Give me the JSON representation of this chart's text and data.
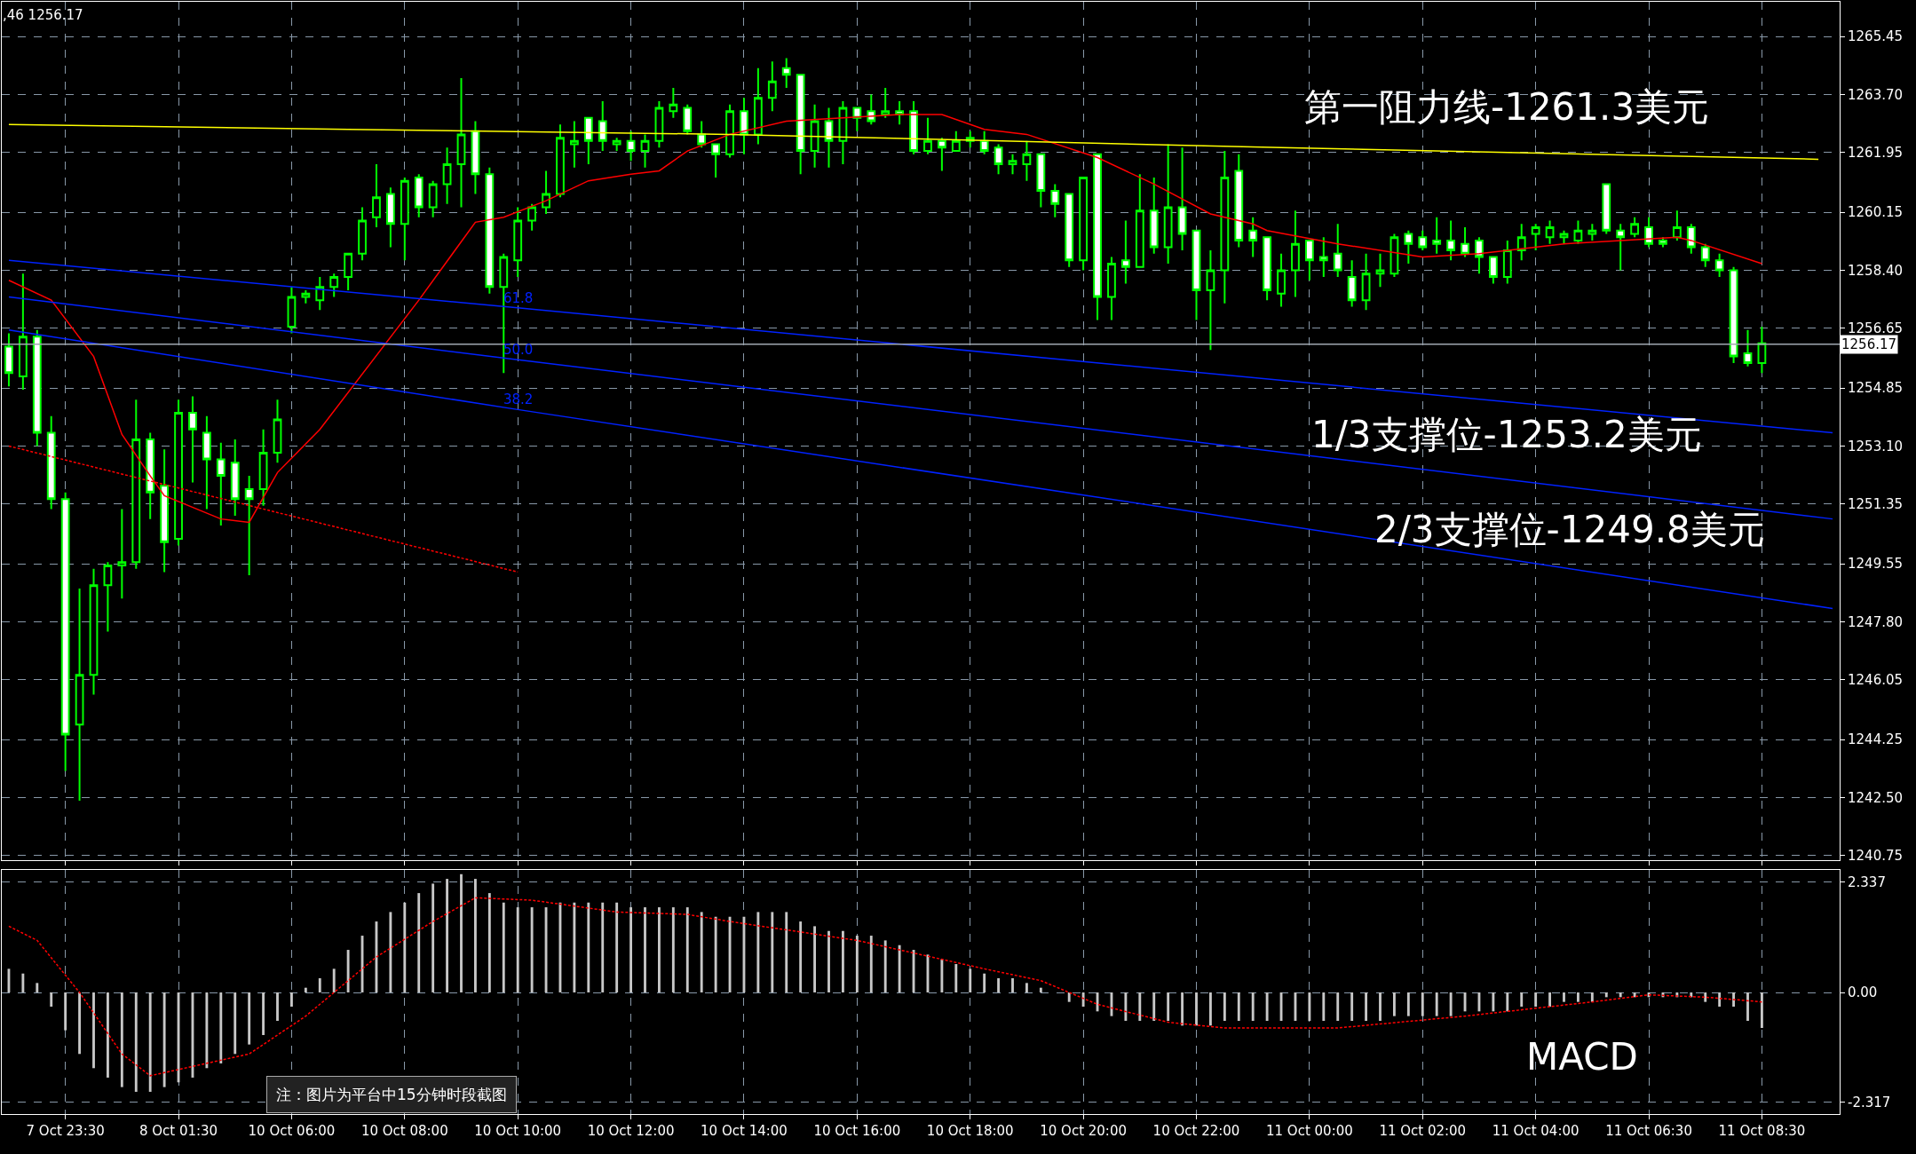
{
  "chart_data": [
    {
      "type": "candlestick",
      "tick_labels": "y",
      "grid": true,
      "categories": [
        null,
        null,
        null,
        null,
        null,
        null,
        null,
        null,
        null,
        null,
        null,
        null,
        null,
        null,
        null,
        null,
        null,
        null,
        null,
        null,
        null,
        null,
        null,
        null,
        null,
        null,
        null,
        null,
        null,
        null,
        null,
        null,
        null,
        null,
        null,
        null,
        null,
        null,
        null,
        null,
        null,
        null,
        null,
        null,
        null,
        null,
        null,
        null,
        null,
        null,
        null,
        null,
        null,
        null,
        null,
        null,
        null,
        null,
        null,
        null,
        null,
        null,
        null,
        null,
        null,
        null,
        null,
        null,
        null,
        null,
        null,
        null,
        null,
        null,
        null,
        null,
        null,
        null,
        null,
        null,
        null,
        null,
        null,
        null,
        null,
        null,
        null,
        null,
        null,
        null,
        null,
        null,
        null,
        null,
        null,
        null,
        null,
        null,
        null,
        null,
        null,
        null,
        null,
        null,
        null,
        null,
        null,
        null,
        null,
        null,
        null,
        null,
        null,
        null,
        null,
        null,
        null,
        null,
        null,
        null,
        null,
        null,
        null,
        null,
        null,
        null,
        null,
        null,
        null,
        null
      ],
      "ohlc": [
        [
          1256.1,
          1256.5,
          1254.9,
          1255.3
        ],
        [
          1255.2,
          1258.3,
          1254.8,
          1256.4
        ],
        [
          1256.4,
          1256.6,
          1253.1,
          1253.5
        ],
        [
          1253.5,
          1254.0,
          1251.2,
          1251.5
        ],
        [
          1251.5,
          1251.7,
          1243.3,
          1244.4
        ],
        [
          1244.7,
          1248.8,
          1242.4,
          1246.2
        ],
        [
          1246.2,
          1249.4,
          1245.6,
          1248.9
        ],
        [
          1248.9,
          1249.6,
          1247.5,
          1249.5
        ],
        [
          1249.5,
          1251.2,
          1248.5,
          1249.6
        ],
        [
          1249.6,
          1254.5,
          1249.4,
          1253.3
        ],
        [
          1253.3,
          1253.5,
          1250.9,
          1251.7
        ],
        [
          1251.9,
          1253.0,
          1249.3,
          1250.2
        ],
        [
          1250.3,
          1254.5,
          1250.1,
          1254.1
        ],
        [
          1254.1,
          1254.6,
          1252.0,
          1253.6
        ],
        [
          1253.5,
          1254.0,
          1251.2,
          1252.7
        ],
        [
          1252.7,
          1253.2,
          1250.7,
          1252.2
        ],
        [
          1252.6,
          1253.3,
          1251.0,
          1251.5
        ],
        [
          1251.8,
          1252.2,
          1249.2,
          1251.5
        ],
        [
          1251.8,
          1253.6,
          1251.3,
          1252.9
        ],
        [
          1252.9,
          1254.5,
          1252.6,
          1253.9
        ],
        [
          1256.7,
          1257.9,
          1256.5,
          1257.6
        ],
        [
          1257.6,
          1257.8,
          1257.4,
          1257.7
        ],
        [
          1257.5,
          1258.2,
          1257.2,
          1257.9
        ],
        [
          1257.9,
          1258.3,
          1257.6,
          1258.2
        ],
        [
          1258.2,
          1258.9,
          1257.8,
          1258.9
        ],
        [
          1258.9,
          1260.3,
          1258.7,
          1259.9
        ],
        [
          1260.0,
          1261.6,
          1259.7,
          1260.6
        ],
        [
          1260.7,
          1260.9,
          1259.1,
          1259.8
        ],
        [
          1259.8,
          1261.2,
          1258.7,
          1261.1
        ],
        [
          1261.2,
          1261.3,
          1260.0,
          1260.3
        ],
        [
          1260.3,
          1261.1,
          1260.0,
          1261.0
        ],
        [
          1261.0,
          1262.1,
          1260.4,
          1261.6
        ],
        [
          1261.6,
          1264.2,
          1260.3,
          1262.5
        ],
        [
          1262.6,
          1262.9,
          1260.7,
          1261.3
        ],
        [
          1261.3,
          1261.5,
          1257.7,
          1257.9
        ],
        [
          1257.9,
          1258.9,
          1255.3,
          1258.8
        ],
        [
          1258.7,
          1260.3,
          1258.2,
          1259.9
        ],
        [
          1259.9,
          1260.4,
          1259.6,
          1260.3
        ],
        [
          1260.3,
          1261.4,
          1260.1,
          1260.7
        ],
        [
          1260.7,
          1262.8,
          1260.6,
          1262.4
        ],
        [
          1262.2,
          1262.9,
          1261.5,
          1262.3
        ],
        [
          1263.0,
          1263.0,
          1261.6,
          1262.3
        ],
        [
          1262.9,
          1263.5,
          1262.0,
          1262.3
        ],
        [
          1262.2,
          1262.4,
          1262.0,
          1262.3
        ],
        [
          1262.3,
          1262.6,
          1261.7,
          1262.0
        ],
        [
          1262.0,
          1262.5,
          1261.5,
          1262.3
        ],
        [
          1262.3,
          1263.5,
          1262.1,
          1263.3
        ],
        [
          1263.2,
          1263.9,
          1263.0,
          1263.4
        ],
        [
          1263.3,
          1263.4,
          1262.5,
          1262.6
        ],
        [
          1262.5,
          1262.9,
          1262.1,
          1262.2
        ],
        [
          1262.2,
          1262.2,
          1261.2,
          1261.9
        ],
        [
          1261.9,
          1263.4,
          1261.8,
          1263.2
        ],
        [
          1263.2,
          1263.6,
          1261.9,
          1262.5
        ],
        [
          1262.5,
          1264.5,
          1262.2,
          1263.6
        ],
        [
          1263.6,
          1264.7,
          1263.2,
          1264.1
        ],
        [
          1264.5,
          1264.8,
          1263.9,
          1264.3
        ],
        [
          1264.3,
          1264.3,
          1261.3,
          1262.0
        ],
        [
          1262.0,
          1263.4,
          1261.5,
          1262.9
        ],
        [
          1262.9,
          1263.3,
          1261.5,
          1262.3
        ],
        [
          1262.3,
          1263.5,
          1261.6,
          1263.3
        ],
        [
          1263.3,
          1263.3,
          1262.6,
          1263.0
        ],
        [
          1263.2,
          1263.7,
          1262.8,
          1262.9
        ],
        [
          1263.1,
          1263.9,
          1263.0,
          1263.2
        ],
        [
          1263.2,
          1263.5,
          1262.8,
          1263.1
        ],
        [
          1263.2,
          1263.5,
          1261.9,
          1262.0
        ],
        [
          1262.0,
          1263.0,
          1261.9,
          1262.3
        ],
        [
          1262.3,
          1262.4,
          1261.4,
          1262.1
        ],
        [
          1262.0,
          1262.6,
          1262.0,
          1262.3
        ],
        [
          1262.3,
          1262.6,
          1262.1,
          1262.4
        ],
        [
          1262.3,
          1262.6,
          1261.9,
          1262.0
        ],
        [
          1262.1,
          1262.2,
          1261.3,
          1261.6
        ],
        [
          1261.6,
          1261.9,
          1261.3,
          1261.7
        ],
        [
          1261.6,
          1262.3,
          1261.1,
          1261.9
        ],
        [
          1261.9,
          1261.9,
          1260.3,
          1260.8
        ],
        [
          1260.8,
          1261.0,
          1260.0,
          1260.4
        ],
        [
          1260.7,
          1260.7,
          1258.5,
          1258.7
        ],
        [
          1258.7,
          1261.2,
          1258.4,
          1261.2
        ],
        [
          1261.9,
          1261.9,
          1256.9,
          1257.6
        ],
        [
          1257.6,
          1258.8,
          1256.9,
          1258.6
        ],
        [
          1258.7,
          1259.9,
          1258.0,
          1258.5
        ],
        [
          1258.5,
          1261.3,
          1258.5,
          1260.2
        ],
        [
          1260.2,
          1261.2,
          1258.9,
          1259.1
        ],
        [
          1259.1,
          1262.2,
          1258.6,
          1260.3
        ],
        [
          1260.3,
          1262.1,
          1259.0,
          1259.5
        ],
        [
          1259.6,
          1259.6,
          1256.9,
          1257.8
        ],
        [
          1257.8,
          1259.0,
          1256.0,
          1258.4
        ],
        [
          1258.4,
          1262.0,
          1257.4,
          1261.2
        ],
        [
          1261.4,
          1261.9,
          1259.1,
          1259.3
        ],
        [
          1259.6,
          1260.0,
          1258.8,
          1259.3
        ],
        [
          1259.4,
          1259.4,
          1257.5,
          1257.8
        ],
        [
          1257.7,
          1258.9,
          1257.3,
          1258.4
        ],
        [
          1258.4,
          1260.2,
          1257.6,
          1259.2
        ],
        [
          1259.3,
          1259.3,
          1258.1,
          1258.7
        ],
        [
          1258.8,
          1259.4,
          1258.2,
          1258.7
        ],
        [
          1258.9,
          1259.8,
          1258.2,
          1258.4
        ],
        [
          1258.2,
          1258.7,
          1257.3,
          1257.5
        ],
        [
          1257.5,
          1258.9,
          1257.2,
          1258.3
        ],
        [
          1258.3,
          1258.9,
          1257.9,
          1258.4
        ],
        [
          1258.3,
          1259.5,
          1258.2,
          1259.4
        ],
        [
          1259.5,
          1259.6,
          1258.6,
          1259.2
        ],
        [
          1259.4,
          1259.6,
          1259.0,
          1259.1
        ],
        [
          1259.3,
          1260.0,
          1258.9,
          1259.2
        ],
        [
          1259.3,
          1259.9,
          1258.7,
          1259.0
        ],
        [
          1259.2,
          1259.7,
          1258.8,
          1258.9
        ],
        [
          1259.3,
          1259.4,
          1258.3,
          1258.8
        ],
        [
          1258.8,
          1258.8,
          1258.0,
          1258.2
        ],
        [
          1258.2,
          1259.3,
          1258.0,
          1259.0
        ],
        [
          1259.0,
          1259.8,
          1258.7,
          1259.4
        ],
        [
          1259.5,
          1259.8,
          1259.0,
          1259.7
        ],
        [
          1259.4,
          1259.9,
          1259.2,
          1259.7
        ],
        [
          1259.4,
          1259.6,
          1259.2,
          1259.5
        ],
        [
          1259.3,
          1259.9,
          1259.2,
          1259.6
        ],
        [
          1259.5,
          1259.8,
          1259.3,
          1259.6
        ],
        [
          1261.0,
          1261.0,
          1259.5,
          1259.6
        ],
        [
          1259.6,
          1259.8,
          1258.4,
          1259.4
        ],
        [
          1259.5,
          1260.0,
          1259.4,
          1259.8
        ],
        [
          1259.7,
          1260.0,
          1259.1,
          1259.2
        ],
        [
          1259.3,
          1259.4,
          1259.1,
          1259.2
        ],
        [
          1259.4,
          1260.2,
          1259.3,
          1259.7
        ],
        [
          1259.7,
          1259.8,
          1258.9,
          1259.1
        ],
        [
          1259.1,
          1259.2,
          1258.5,
          1258.7
        ],
        [
          1258.7,
          1258.9,
          1258.2,
          1258.4
        ],
        [
          1258.4,
          1258.5,
          1255.6,
          1255.8
        ],
        [
          1255.9,
          1256.6,
          1255.5,
          1255.6
        ],
        [
          1255.6,
          1256.7,
          1255.3,
          1256.2
        ],
        null,
        null,
        null,
        null,
        null
      ],
      "color": "#00ff00",
      "series": [
        {
          "type": "line",
          "color": "#ff0000",
          "values": [
            1258.1,
            null,
            null,
            1257.5,
            null,
            null,
            1255.8,
            null,
            1253.45,
            null,
            1252.2,
            1251.6,
            null,
            null,
            null,
            1250.9,
            null,
            1250.8,
            null,
            1252.3,
            null,
            null,
            1253.6,
            null,
            null,
            null,
            null,
            null,
            null,
            1257.5,
            null,
            null,
            null,
            1259.85,
            null,
            1260.0,
            null,
            null,
            1260.5,
            null,
            null,
            1261.1,
            null,
            null,
            1261.3,
            null,
            1261.4,
            null,
            1262.0,
            null,
            null,
            1262.5,
            null,
            null,
            null,
            1262.9,
            null,
            null,
            null,
            1263.0,
            null,
            null,
            null,
            1263.1,
            null,
            null,
            1263.1,
            null,
            null,
            1262.65,
            null,
            null,
            1262.5,
            null,
            null,
            null,
            null,
            1261.8,
            null,
            null,
            null,
            1261.0,
            null,
            null,
            null,
            1260.1,
            null,
            null,
            1259.8,
            1259.6,
            null,
            null,
            null,
            null,
            1259.2,
            null,
            null,
            null,
            null,
            null,
            1258.8,
            null,
            null,
            null,
            1258.9,
            null,
            null,
            null,
            null,
            null,
            1259.2,
            null,
            null,
            null,
            1259.3,
            null,
            null,
            null,
            1259.4,
            1259.3,
            null,
            null,
            null,
            null,
            1258.6,
            null,
            null,
            null,
            null,
            null
          ]
        },
        {
          "type": "line",
          "color": "#ffff00",
          "values": [
            1262.8,
            null,
            null,
            null,
            null,
            null,
            null,
            null,
            null,
            null,
            null,
            null,
            null,
            null,
            null,
            null,
            null,
            null,
            null,
            null,
            null,
            null,
            null,
            null,
            1262.65,
            null,
            null,
            null,
            null,
            null,
            null,
            null,
            null,
            null,
            null,
            null,
            null,
            null,
            null,
            null,
            null,
            null,
            null,
            null,
            null,
            null,
            null,
            null,
            null,
            null,
            null,
            1262.5,
            null,
            null,
            null,
            null,
            null,
            null,
            null,
            null,
            null,
            null,
            null,
            null,
            null,
            null,
            null,
            null,
            null,
            null,
            null,
            null,
            null,
            null,
            null,
            null,
            null,
            null,
            null,
            null,
            null,
            null,
            null,
            null,
            null,
            null,
            null,
            null,
            null,
            null,
            1262.1,
            null,
            null,
            null,
            null,
            null,
            null,
            null,
            null,
            null,
            null,
            null,
            null,
            null,
            null,
            null,
            null,
            null,
            null,
            null,
            null,
            null,
            null,
            null,
            null,
            null,
            null,
            null,
            null,
            null,
            null,
            null,
            null,
            null,
            null,
            null,
            null,
            null,
            1261.75,
            null
          ]
        },
        {
          "type": "line",
          "name": "61.8",
          "color": "#0022ff",
          "values": [
            1258.7,
            null,
            null,
            null,
            null,
            null,
            null,
            null,
            null,
            null,
            null,
            null,
            null,
            null,
            null,
            null,
            null,
            null,
            null,
            null,
            null,
            null,
            null,
            null,
            null,
            null,
            null,
            null,
            null,
            null,
            null,
            null,
            null,
            null,
            null,
            null,
            1257.27,
            null,
            null,
            null,
            null,
            null,
            null,
            null,
            null,
            null,
            null,
            null,
            null,
            null,
            null,
            null,
            null,
            null,
            null,
            null,
            null,
            null,
            null,
            null,
            null,
            null,
            null,
            null,
            null,
            null,
            null,
            null,
            null,
            null,
            null,
            null,
            null,
            null,
            null,
            null,
            null,
            null,
            null,
            null,
            null,
            null,
            null,
            null,
            null,
            null,
            null,
            null,
            null,
            null,
            null,
            null,
            null,
            null,
            null,
            null,
            null,
            null,
            null,
            null,
            null,
            null,
            null,
            null,
            null,
            null,
            null,
            null,
            null,
            null,
            null,
            null,
            null,
            null,
            null,
            null,
            null,
            null,
            null,
            null,
            null,
            null,
            null,
            null,
            null,
            null,
            null,
            null,
            null,
            1253.5
          ]
        },
        {
          "type": "line",
          "name": "50.0",
          "color": "#0022ff",
          "values": [
            1257.6,
            null,
            null,
            null,
            null,
            null,
            null,
            null,
            null,
            null,
            null,
            null,
            null,
            null,
            null,
            null,
            null,
            null,
            null,
            null,
            null,
            null,
            null,
            null,
            null,
            null,
            null,
            null,
            null,
            null,
            null,
            null,
            null,
            null,
            null,
            null,
            1255.7,
            null,
            null,
            null,
            null,
            null,
            null,
            null,
            null,
            null,
            null,
            null,
            null,
            null,
            null,
            null,
            null,
            null,
            null,
            null,
            null,
            null,
            null,
            null,
            null,
            null,
            null,
            null,
            null,
            null,
            null,
            null,
            null,
            null,
            null,
            null,
            null,
            null,
            null,
            null,
            null,
            null,
            null,
            null,
            null,
            null,
            null,
            null,
            null,
            null,
            null,
            null,
            null,
            null,
            null,
            null,
            null,
            null,
            null,
            null,
            null,
            null,
            null,
            null,
            null,
            null,
            null,
            null,
            null,
            null,
            null,
            null,
            null,
            null,
            null,
            null,
            null,
            null,
            null,
            null,
            null,
            null,
            null,
            null,
            null,
            null,
            null,
            null,
            null,
            null,
            null,
            null,
            null,
            1250.9
          ]
        },
        {
          "type": "line",
          "name": "38.2",
          "color": "#0022ff",
          "values": [
            1256.6,
            null,
            null,
            null,
            null,
            null,
            null,
            null,
            null,
            null,
            null,
            null,
            null,
            null,
            null,
            null,
            null,
            null,
            null,
            null,
            null,
            null,
            null,
            null,
            null,
            null,
            null,
            null,
            null,
            null,
            null,
            null,
            null,
            null,
            null,
            null,
            1254.2,
            null,
            null,
            null,
            null,
            null,
            null,
            null,
            null,
            null,
            null,
            null,
            null,
            null,
            null,
            null,
            null,
            null,
            null,
            null,
            null,
            null,
            null,
            null,
            null,
            null,
            null,
            null,
            null,
            null,
            null,
            null,
            null,
            null,
            null,
            null,
            null,
            null,
            null,
            null,
            null,
            null,
            null,
            null,
            null,
            null,
            null,
            null,
            null,
            null,
            null,
            null,
            null,
            null,
            null,
            null,
            null,
            null,
            null,
            null,
            null,
            null,
            null,
            null,
            null,
            null,
            null,
            null,
            null,
            null,
            null,
            null,
            null,
            null,
            null,
            null,
            null,
            null,
            null,
            null,
            null,
            null,
            null,
            null,
            null,
            null,
            null,
            null,
            null,
            null,
            null,
            null,
            null,
            1248.2
          ]
        },
        {
          "type": "line",
          "color": "#ff0000",
          "line_style": "dashed",
          "values": [
            1253.1,
            null,
            null,
            null,
            null,
            null,
            null,
            null,
            null,
            null,
            null,
            null,
            null,
            null,
            null,
            null,
            null,
            null,
            null,
            null,
            null,
            null,
            null,
            null,
            null,
            null,
            null,
            null,
            null,
            null,
            null,
            null,
            null,
            null,
            null,
            null,
            1249.3,
            null,
            null,
            null,
            null,
            null,
            null,
            null,
            null,
            null,
            null,
            null,
            null,
            null,
            null,
            null,
            null,
            null,
            null,
            null,
            null,
            null,
            null,
            null,
            null,
            null,
            null,
            null,
            null,
            null,
            null,
            null,
            null,
            null,
            null,
            null,
            null,
            null,
            null,
            null,
            null,
            null,
            null,
            null,
            null,
            null,
            null,
            null,
            null,
            null,
            null,
            null,
            null,
            null,
            null,
            null,
            null,
            null,
            null,
            null,
            null,
            null,
            null,
            null,
            null,
            null,
            null,
            null,
            null,
            null,
            null,
            null,
            null,
            null,
            null,
            null,
            null,
            null,
            null,
            null,
            null,
            null,
            null,
            null,
            null,
            null,
            null,
            null,
            null,
            null,
            null,
            null,
            null,
            null
          ]
        }
      ],
      "ref_lines": [
        {
          "axis": "y",
          "value": 1256.17,
          "label": "1256.17",
          "color": "#a0a8b0"
        }
      ],
      "ylim": [
        1240.6,
        1266.5
      ],
      "yticks": [
        1265.45,
        {
          "value": 1263.7,
          "label": "1263.70"
        },
        1261.95,
        1260.15,
        {
          "value": 1258.4,
          "label": "1258.40"
        },
        1256.65,
        1254.85,
        {
          "value": 1253.1,
          "label": "1253.10"
        },
        1251.35,
        1249.55,
        {
          "value": 1247.8,
          "label": "1247.80"
        },
        1246.05,
        1244.25,
        {
          "value": 1242.5,
          "label": "1242.50"
        },
        1240.75
      ],
      "annotations": [
        ",46 1256.17",
        "第一阻力线-1261.3美元",
        "1/3支撑位-1253.2美元",
        "2/3支撑位-1249.8美元"
      ]
    },
    {
      "type": "bar",
      "grid": true,
      "categories": [
        null,
        null,
        null,
        null,
        "7 Oct 23:30",
        null,
        null,
        null,
        null,
        null,
        null,
        null,
        "8 Oct 01:30",
        null,
        null,
        null,
        null,
        null,
        null,
        null,
        "10 Oct 06:00",
        null,
        null,
        null,
        null,
        null,
        null,
        null,
        "10 Oct 08:00",
        null,
        null,
        null,
        null,
        null,
        null,
        null,
        "10 Oct 10:00",
        null,
        null,
        null,
        null,
        null,
        null,
        null,
        "10 Oct 12:00",
        null,
        null,
        null,
        null,
        null,
        null,
        null,
        "10 Oct 14:00",
        null,
        null,
        null,
        null,
        null,
        null,
        null,
        "10 Oct 16:00",
        null,
        null,
        null,
        null,
        null,
        null,
        null,
        "10 Oct 18:00",
        null,
        null,
        null,
        null,
        null,
        null,
        null,
        "10 Oct 20:00",
        null,
        null,
        null,
        null,
        null,
        null,
        null,
        "10 Oct 22:00",
        null,
        null,
        null,
        null,
        null,
        null,
        null,
        "11 Oct 00:00",
        null,
        null,
        null,
        null,
        null,
        null,
        null,
        "11 Oct 02:00",
        null,
        null,
        null,
        null,
        null,
        null,
        null,
        "11 Oct 04:00",
        null,
        null,
        null,
        null,
        null,
        null,
        null,
        "11 Oct 06:30",
        null,
        null,
        null,
        null,
        null,
        null,
        null,
        "11 Oct 08:30",
        null,
        null,
        null,
        null,
        null
      ],
      "series": [
        {
          "type": "bar",
          "color": "#c8c8c8",
          "values": [
            0.5,
            0.4,
            0.2,
            -0.3,
            -0.8,
            -1.3,
            -1.6,
            -1.8,
            -2.0,
            -2.1,
            -2.1,
            -2.0,
            -1.9,
            -1.8,
            -1.6,
            -1.5,
            -1.3,
            -1.1,
            -0.9,
            -0.6,
            -0.3,
            0.1,
            0.3,
            0.5,
            0.9,
            1.2,
            1.5,
            1.7,
            1.9,
            2.1,
            2.3,
            2.4,
            2.5,
            2.4,
            2.1,
            1.9,
            1.8,
            1.8,
            1.8,
            1.9,
            1.9,
            1.9,
            1.9,
            1.9,
            1.8,
            1.8,
            1.8,
            1.8,
            1.8,
            1.7,
            1.6,
            1.6,
            1.6,
            1.7,
            1.7,
            1.7,
            1.5,
            1.4,
            1.3,
            1.3,
            1.2,
            1.2,
            1.1,
            1.0,
            0.9,
            0.8,
            0.7,
            0.6,
            0.5,
            0.4,
            0.3,
            0.3,
            0.2,
            0.1,
            0.0,
            -0.2,
            -0.3,
            -0.4,
            -0.5,
            -0.6,
            -0.6,
            -0.6,
            -0.6,
            -0.7,
            -0.7,
            -0.7,
            -0.6,
            -0.6,
            -0.6,
            -0.6,
            -0.6,
            -0.6,
            -0.6,
            -0.6,
            -0.6,
            -0.6,
            -0.6,
            -0.6,
            -0.5,
            -0.5,
            -0.5,
            -0.5,
            -0.5,
            -0.4,
            -0.4,
            -0.4,
            -0.4,
            -0.3,
            -0.3,
            -0.3,
            -0.2,
            -0.2,
            -0.2,
            -0.1,
            -0.1,
            -0.1,
            -0.1,
            -0.1,
            -0.1,
            -0.1,
            -0.2,
            -0.3,
            -0.3,
            -0.6,
            -0.75,
            null,
            null,
            null,
            null,
            null
          ]
        },
        {
          "type": "line",
          "color": "#ff0000",
          "line_style": "dashed",
          "values": [
            1.4,
            null,
            1.1,
            null,
            null,
            0.0,
            null,
            null,
            -1.3,
            null,
            -1.76,
            null,
            null,
            null,
            null,
            null,
            null,
            -1.3,
            null,
            null,
            null,
            -0.5,
            null,
            null,
            null,
            null,
            0.75,
            null,
            null,
            null,
            1.5,
            null,
            null,
            2.0,
            null,
            null,
            null,
            1.95,
            null,
            null,
            null,
            null,
            null,
            1.7,
            null,
            null,
            null,
            null,
            1.65,
            null,
            null,
            1.5,
            null,
            null,
            null,
            null,
            null,
            null,
            null,
            null,
            1.1,
            null,
            null,
            null,
            null,
            null,
            null,
            null,
            null,
            0.5,
            null,
            null,
            null,
            0.25,
            null,
            null,
            null,
            -0.25,
            null,
            null,
            null,
            null,
            -0.63,
            null,
            null,
            null,
            -0.75,
            null,
            null,
            null,
            null,
            null,
            null,
            null,
            -0.75,
            null,
            null,
            null,
            null,
            null,
            null,
            null,
            null,
            -0.5,
            null,
            null,
            null,
            null,
            null,
            null,
            null,
            null,
            -0.2,
            null,
            null,
            null,
            -0.05,
            null,
            null,
            null,
            -0.1,
            null,
            null,
            null,
            -0.2,
            null,
            null,
            null,
            null,
            null
          ]
        }
      ],
      "ylim": [
        -2.57,
        2.59
      ],
      "yticks": [
        2.337,
        {
          "value": 0,
          "label": "0.00"
        },
        -2.317
      ],
      "annotations": [
        "MACD",
        "注：图片为平台中15分钟时段截图"
      ]
    }
  ]
}
